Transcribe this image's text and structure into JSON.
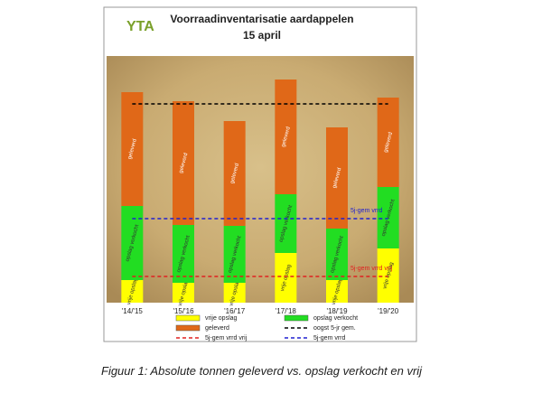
{
  "logo": "YTA",
  "caption": "Figuur 1: Absolute tonnen geleverd vs. opslag verkocht en vrij",
  "chart_data": {
    "type": "bar",
    "stacked": true,
    "title": "Voorraadinventarisatie aardappelen",
    "subtitle": "15 april",
    "categories": [
      "'14/'15",
      "'15/'16",
      "'16/'17",
      "'17/'18",
      "'18/'19",
      "'19/'20"
    ],
    "series": [
      {
        "name": "vrije opslag",
        "color": "#ffff00",
        "values": [
          25,
          22,
          22,
          55,
          25,
          60
        ]
      },
      {
        "name": "opslag verkocht",
        "color": "#22dd22",
        "values": [
          82,
          64,
          63,
          65,
          57,
          68
        ]
      },
      {
        "name": "geleverd",
        "color": "#e06818",
        "values": [
          126,
          137,
          116,
          127,
          112,
          99
        ]
      }
    ],
    "lines": [
      {
        "name": "oogst 5-jr gem.",
        "color": "#000000",
        "value": 220
      },
      {
        "name": "5j-gem vrrd vrij",
        "color": "#e02020",
        "value": 29
      },
      {
        "name": "5j-gem vrrd",
        "color": "#2020d0",
        "value": 93
      }
    ],
    "ylim": [
      0,
      273
    ]
  }
}
